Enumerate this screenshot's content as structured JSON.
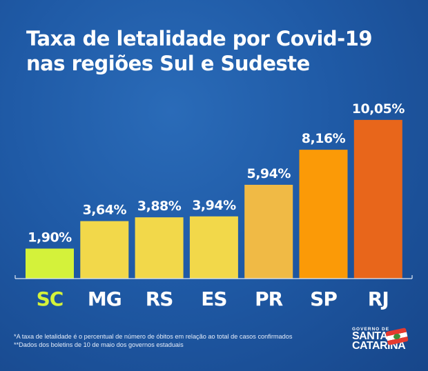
{
  "title_line1": "Taxa de letalidade por Covid-19",
  "title_line2": "nas regiões Sul e Sudeste",
  "chart_data": {
    "type": "bar",
    "title": "Taxa de letalidade por Covid-19 nas regiões Sul e Sudeste",
    "xlabel": "",
    "ylabel": "",
    "ylim": [
      0,
      10.5
    ],
    "grid": false,
    "categories": [
      "SC",
      "MG",
      "RS",
      "ES",
      "PR",
      "SP",
      "RJ"
    ],
    "values": [
      1.9,
      3.64,
      3.88,
      3.94,
      5.94,
      8.16,
      10.05
    ],
    "data_labels": [
      "1,90%",
      "3,64%",
      "3,88%",
      "3,94%",
      "5,94%",
      "8,16%",
      "10,05%"
    ],
    "colors": [
      "#d4f23a",
      "#f2d84a",
      "#f2d84a",
      "#f2d84a",
      "#f0ba45",
      "#fb9a07",
      "#e8661b"
    ],
    "category_label_colors": [
      "#d4f23a",
      "#ffffff",
      "#ffffff",
      "#ffffff",
      "#ffffff",
      "#ffffff",
      "#ffffff"
    ]
  },
  "footnotes": [
    "*A taxa de letalidade é o percentual de número de óbitos em relação ao total de casos confirmados",
    "**Dados dos boletins de 10 de maio dos governos estaduais"
  ],
  "logo": {
    "line1": "GOVERNO DE",
    "line2": "SANTA",
    "line3": "CATARINA"
  }
}
